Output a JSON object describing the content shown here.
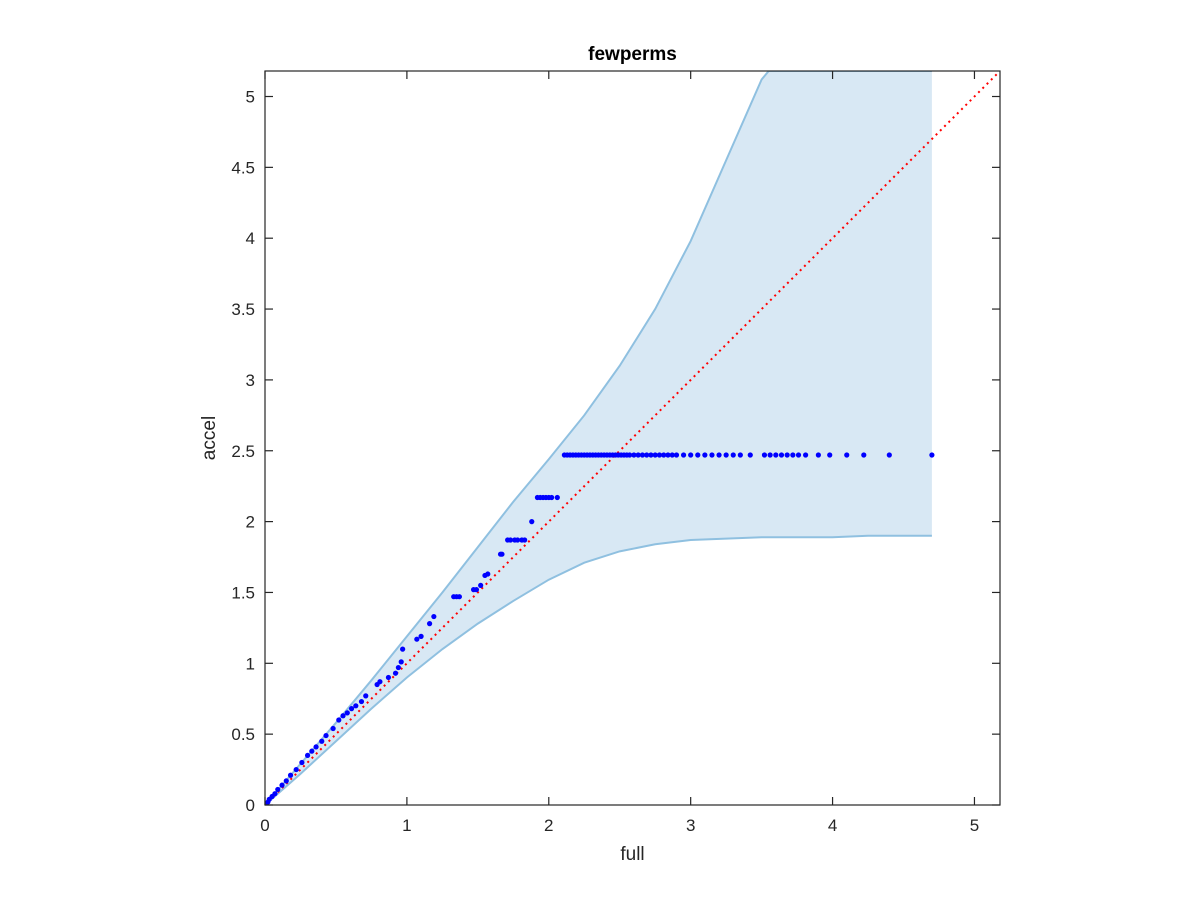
{
  "chart_data": {
    "type": "scatter",
    "title": "fewperms",
    "xlabel": "full",
    "ylabel": "accel",
    "xlim": [
      0,
      5.18
    ],
    "ylim": [
      0,
      5.18
    ],
    "xticks": [
      0,
      1,
      2,
      3,
      4,
      5
    ],
    "xtick_labels": [
      "0",
      "1",
      "2",
      "3",
      "4",
      "5"
    ],
    "yticks": [
      0,
      0.5,
      1,
      1.5,
      2,
      2.5,
      3,
      3.5,
      4,
      4.5,
      5
    ],
    "ytick_labels": [
      "0",
      "0.5",
      "1",
      "1.5",
      "2",
      "2.5",
      "3",
      "3.5",
      "4",
      "4.5",
      "5"
    ],
    "grid": false,
    "colors": {
      "points": "#0000ff",
      "band_fill": "#d8e8f4",
      "band_edge": "#8fc0e0",
      "reference_line": "#ff0000",
      "axes": "#262626"
    },
    "reference_line": {
      "style": "dotted",
      "x": [
        0,
        5.18
      ],
      "y": [
        0,
        5.18
      ]
    },
    "band": {
      "x": [
        0,
        0.25,
        0.5,
        0.75,
        1.0,
        1.25,
        1.5,
        1.75,
        2.0,
        2.25,
        2.5,
        2.75,
        3.0,
        3.25,
        3.5,
        3.55,
        3.75,
        4.0,
        4.25,
        4.5,
        4.7
      ],
      "upper": [
        0,
        0.29,
        0.58,
        0.88,
        1.19,
        1.5,
        1.82,
        2.14,
        2.44,
        2.75,
        3.1,
        3.5,
        3.98,
        4.55,
        5.12,
        5.18,
        5.18,
        5.18,
        5.18,
        5.18,
        5.18
      ],
      "lower": [
        0,
        0.22,
        0.45,
        0.68,
        0.9,
        1.1,
        1.28,
        1.44,
        1.59,
        1.71,
        1.79,
        1.84,
        1.87,
        1.88,
        1.89,
        1.89,
        1.89,
        1.89,
        1.9,
        1.9,
        1.9
      ]
    },
    "series": [
      {
        "x": [
          0.01,
          0.02,
          0.03,
          0.05,
          0.07,
          0.09,
          0.12,
          0.15,
          0.18,
          0.22,
          0.26,
          0.3,
          0.33,
          0.36,
          0.4,
          0.43,
          0.48,
          0.52,
          0.55,
          0.58,
          0.61,
          0.64,
          0.68,
          0.71,
          0.79,
          0.81,
          0.87,
          0.92,
          0.94,
          0.96,
          0.97,
          1.07,
          1.1,
          1.16,
          1.19,
          1.33,
          1.35,
          1.37,
          1.47,
          1.49,
          1.52,
          1.55,
          1.57,
          1.66,
          1.67,
          1.71,
          1.73,
          1.76,
          1.78,
          1.81,
          1.83,
          1.88,
          1.92,
          1.94,
          1.96,
          1.98,
          2.0,
          2.02,
          2.06,
          2.11,
          2.13,
          2.15,
          2.17,
          2.19,
          2.21,
          2.23,
          2.25,
          2.27,
          2.29,
          2.31,
          2.33,
          2.35,
          2.37,
          2.39,
          2.41,
          2.43,
          2.45,
          2.47,
          2.49,
          2.51,
          2.53,
          2.55,
          2.57,
          2.6,
          2.63,
          2.66,
          2.69,
          2.72,
          2.75,
          2.78,
          2.81,
          2.84,
          2.87,
          2.9,
          2.95,
          3.0,
          3.05,
          3.1,
          3.15,
          3.2,
          3.25,
          3.3,
          3.35,
          3.42,
          3.52,
          3.56,
          3.6,
          3.64,
          3.68,
          3.72,
          3.76,
          3.81,
          3.9,
          3.98,
          4.1,
          4.22,
          4.4,
          4.7
        ],
        "y": [
          0.01,
          0.02,
          0.04,
          0.06,
          0.08,
          0.11,
          0.14,
          0.17,
          0.21,
          0.25,
          0.3,
          0.35,
          0.38,
          0.41,
          0.45,
          0.49,
          0.54,
          0.6,
          0.63,
          0.65,
          0.68,
          0.7,
          0.73,
          0.77,
          0.85,
          0.87,
          0.9,
          0.93,
          0.97,
          1.01,
          1.1,
          1.17,
          1.19,
          1.28,
          1.33,
          1.47,
          1.47,
          1.47,
          1.52,
          1.52,
          1.55,
          1.62,
          1.63,
          1.77,
          1.77,
          1.87,
          1.87,
          1.87,
          1.87,
          1.87,
          1.87,
          2.0,
          2.17,
          2.17,
          2.17,
          2.17,
          2.17,
          2.17,
          2.17,
          2.47,
          2.47,
          2.47,
          2.47,
          2.47,
          2.47,
          2.47,
          2.47,
          2.47,
          2.47,
          2.47,
          2.47,
          2.47,
          2.47,
          2.47,
          2.47,
          2.47,
          2.47,
          2.47,
          2.47,
          2.47,
          2.47,
          2.47,
          2.47,
          2.47,
          2.47,
          2.47,
          2.47,
          2.47,
          2.47,
          2.47,
          2.47,
          2.47,
          2.47,
          2.47,
          2.47,
          2.47,
          2.47,
          2.47,
          2.47,
          2.47,
          2.47,
          2.47,
          2.47,
          2.47,
          2.47,
          2.47,
          2.47,
          2.47,
          2.47,
          2.47,
          2.47,
          2.47,
          2.47,
          2.47,
          2.47,
          2.47,
          2.47,
          2.47
        ]
      }
    ]
  }
}
